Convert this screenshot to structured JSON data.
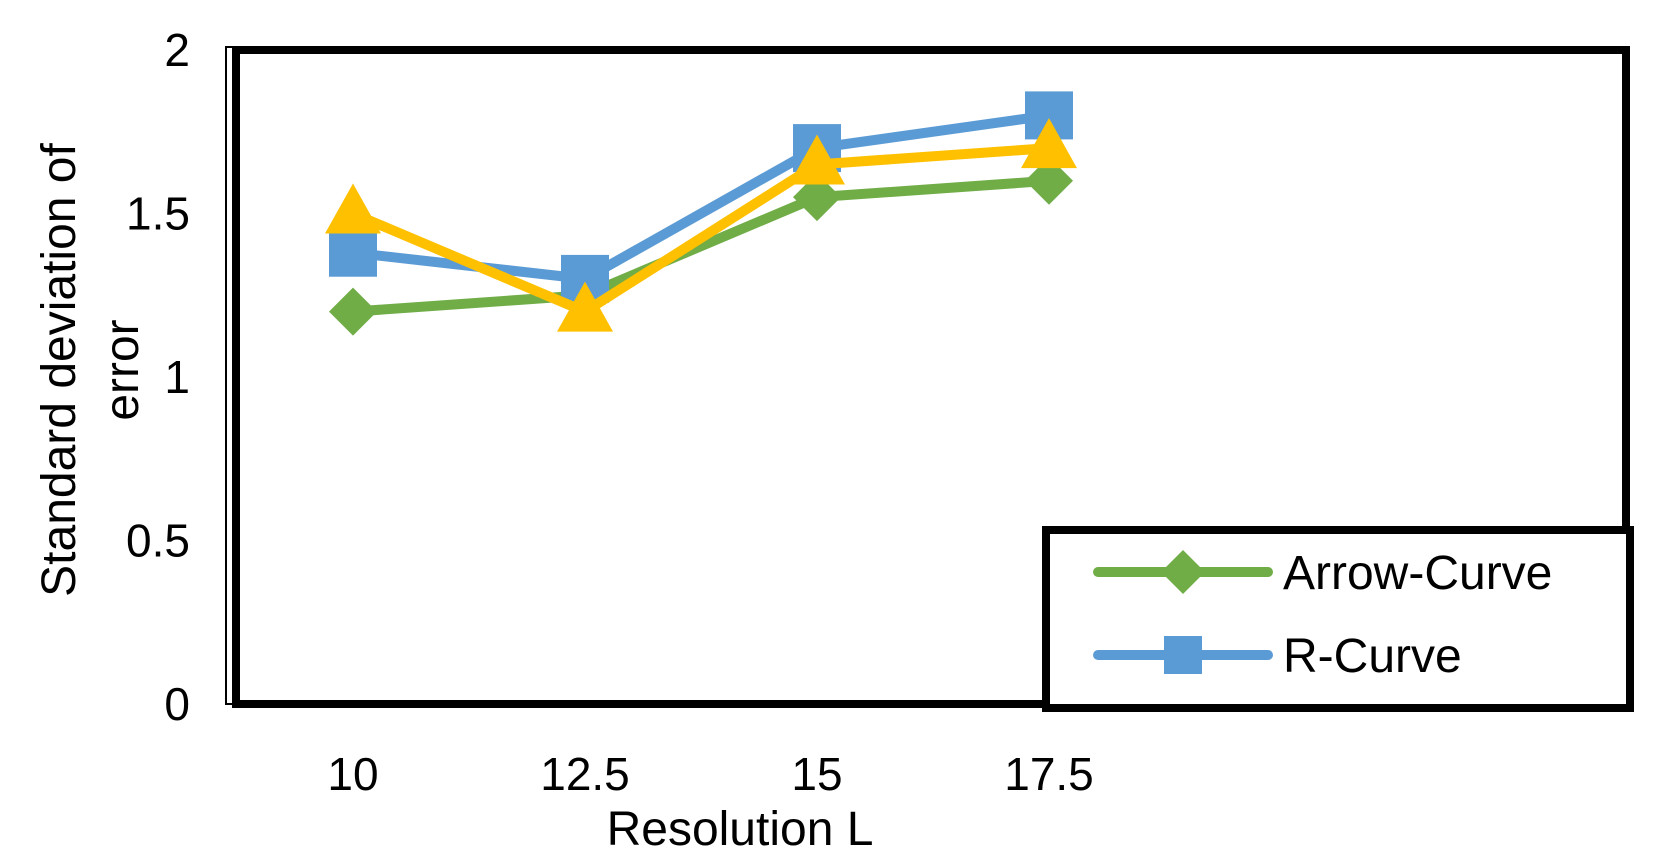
{
  "chart_data": {
    "type": "line",
    "x": [
      10,
      12.5,
      15,
      17.5
    ],
    "x_tick_labels": [
      "10",
      "12.5",
      "15",
      "17.5"
    ],
    "y_tick_labels": [
      "0",
      "0.5",
      "1",
      "1.5",
      "2"
    ],
    "xlabel": "Resolution L",
    "ylabel_lines": [
      "Standard deviation of",
      "error"
    ],
    "ylim": [
      0,
      2
    ],
    "grid": false,
    "legend_position": "bottom-right",
    "series": [
      {
        "name": "Arrow-Curve",
        "marker": "diamond",
        "color": "#70ad47",
        "values": [
          1.2,
          1.25,
          1.55,
          1.6
        ]
      },
      {
        "name": "R-Curve",
        "marker": "square",
        "color": "#5b9bd5",
        "values": [
          1.38,
          1.3,
          1.7,
          1.8
        ]
      },
      {
        "name": "",
        "marker": "triangle",
        "color": "#ffc000",
        "values": [
          1.5,
          1.2,
          1.65,
          1.7
        ]
      }
    ]
  }
}
